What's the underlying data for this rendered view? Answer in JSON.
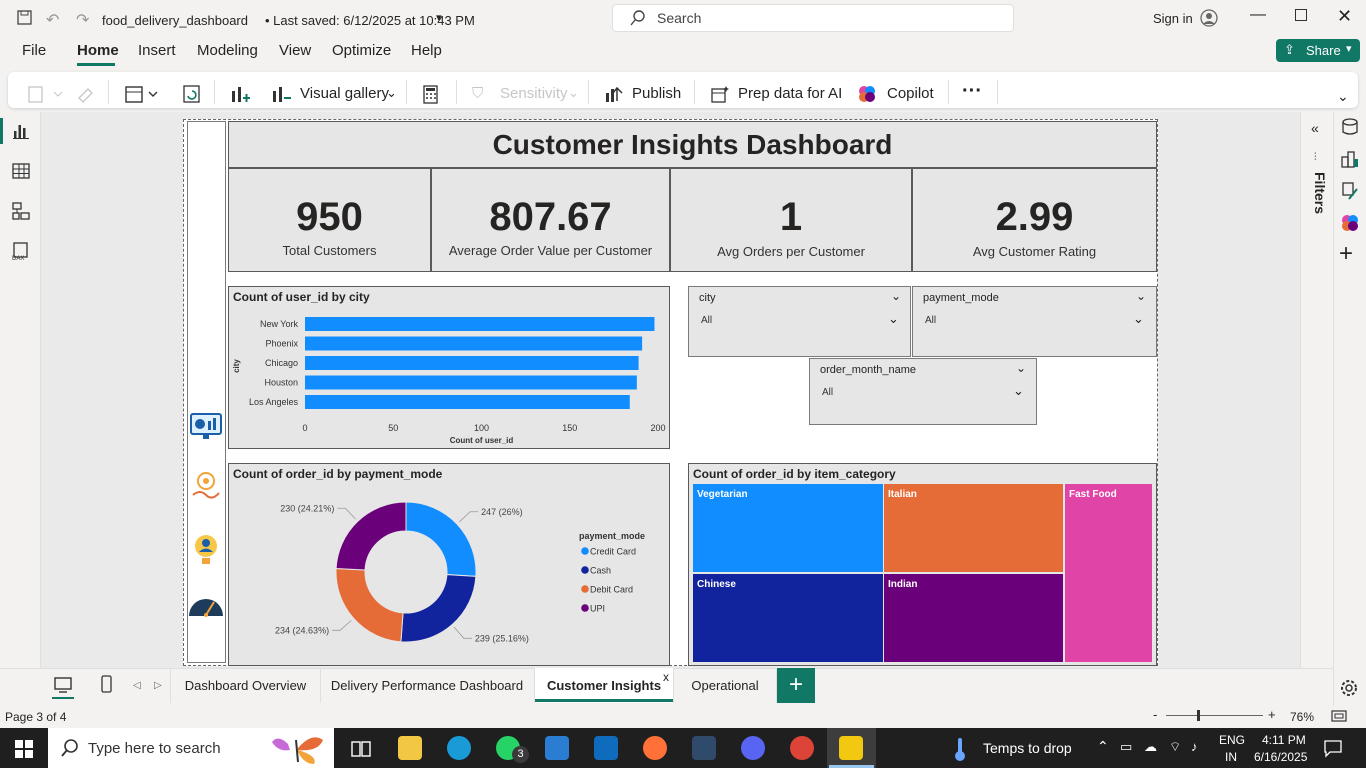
{
  "window": {
    "file_title": "food_delivery_dashboard",
    "saved_status": "• Last saved: 6/12/2025 at 10:43 PM",
    "search_placeholder": "Search",
    "signin": "Sign in"
  },
  "menu": [
    "File",
    "Home",
    "Insert",
    "Modeling",
    "View",
    "Optimize",
    "Help"
  ],
  "share_label": "Share",
  "ribbon": {
    "visual_gallery": "Visual gallery",
    "sensitivity": "Sensitivity",
    "publish": "Publish",
    "prep_data": "Prep data for AI",
    "copilot": "Copilot",
    "more": "···"
  },
  "dashboard": {
    "title": "Customer Insights Dashboard",
    "kpis": [
      {
        "value": "950",
        "label": "Total Customers"
      },
      {
        "value": "807.67",
        "label": "Average Order Value per Customer"
      },
      {
        "value": "1",
        "label": "Avg Orders per Customer"
      },
      {
        "value": "2.99",
        "label": "Avg Customer Rating"
      }
    ]
  },
  "slicers": [
    {
      "field": "city",
      "value": "All"
    },
    {
      "field": "payment_mode",
      "value": "All"
    },
    {
      "field": "order_month_name",
      "value": "All"
    }
  ],
  "filters_label": "Filters",
  "chart_data": [
    {
      "type": "bar",
      "orientation": "horizontal",
      "title": "Count of user_id by city",
      "xlabel": "Count of user_id",
      "ylabel": "city",
      "categories": [
        "New York",
        "Phoenix",
        "Chicago",
        "Houston",
        "Los Angeles"
      ],
      "values": [
        198,
        191,
        189,
        188,
        184
      ],
      "xlim": [
        0,
        200
      ],
      "xticks": [
        "0",
        "50",
        "100",
        "150",
        "200"
      ],
      "color": "#118dff"
    },
    {
      "type": "pie",
      "donut": true,
      "title": "Count of order_id by payment_mode",
      "legend_title": "payment_mode",
      "legend_position": "right",
      "categories": [
        "Credit Card",
        "Cash",
        "Debit Card",
        "UPI"
      ],
      "values": [
        247,
        239,
        234,
        230
      ],
      "data_labels": [
        "247 (26%)",
        "239 (25.16%)",
        "234 (24.63%)",
        "230 (24.21%)"
      ],
      "colors": [
        "#118dff",
        "#12239e",
        "#e66c37",
        "#6b007b"
      ]
    },
    {
      "type": "treemap",
      "title": "Count of order_id by item_category",
      "categories": [
        "Vegetarian",
        "Italian",
        "Fast Food",
        "Chinese",
        "Indian"
      ],
      "colors": [
        "#118dff",
        "#e66c37",
        "#e044a7",
        "#12239e",
        "#6b007b"
      ]
    }
  ],
  "tabs": [
    "Dashboard Overview",
    "Delivery Performance Dashboard",
    "Customer Insights",
    "Operational"
  ],
  "tab_close": "x",
  "add_page": "+",
  "status": {
    "page": "Page 3 of 4",
    "zoom": "76%",
    "zoom_minus": "-",
    "zoom_plus": "+",
    "zoom_level": 0.6
  },
  "taskbar": {
    "search_placeholder": "Type here to search",
    "weather": "Temps to drop",
    "lang1": "ENG",
    "lang2": "IN",
    "time": "4:11 PM",
    "date": "6/16/2025",
    "whatsapp_badge": "3"
  }
}
